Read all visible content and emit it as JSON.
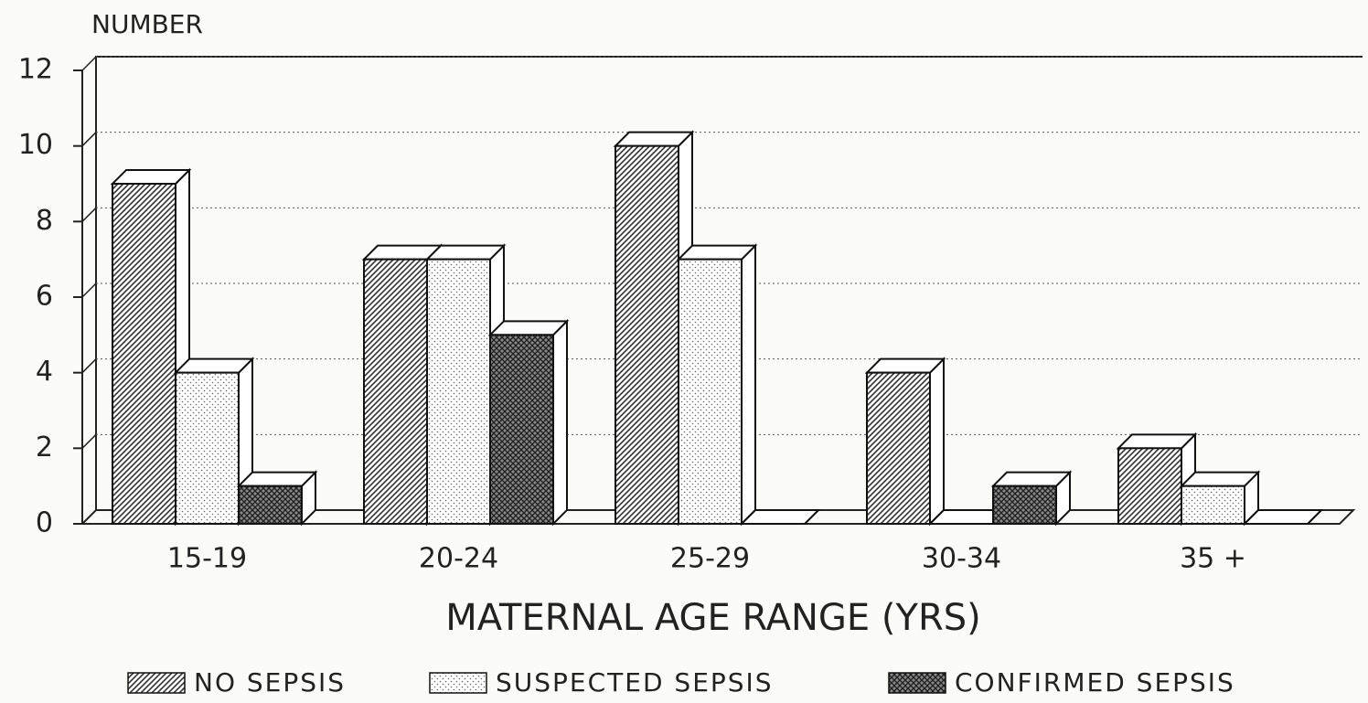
{
  "chart_data": {
    "type": "bar3d",
    "ylabel": "NUMBER",
    "xlabel": "MATERNAL AGE RANGE (YRS)",
    "categories": [
      "15-19",
      "20-24",
      "25-29",
      "30-34",
      "35 +"
    ],
    "series": [
      {
        "name": "NO SEPSIS",
        "color": "#333333",
        "pattern": "diagonal",
        "values": [
          9,
          7,
          10,
          4,
          2
        ]
      },
      {
        "name": "SUSPECTED SEPSIS",
        "color": "#666666",
        "pattern": "dots",
        "values": [
          4,
          7,
          7,
          0,
          1
        ]
      },
      {
        "name": "CONFIRMED SEPSIS",
        "color": "#222222",
        "pattern": "crosshatch",
        "values": [
          1,
          5,
          0,
          1,
          0
        ]
      }
    ],
    "ylim": [
      0,
      12
    ],
    "yticks": [
      0,
      2,
      4,
      6,
      8,
      10,
      12
    ],
    "grid": true,
    "legend": "bottom"
  }
}
